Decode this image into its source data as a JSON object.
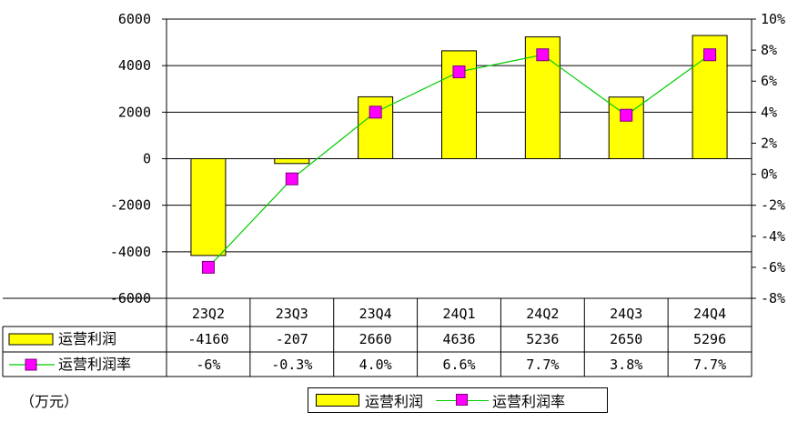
{
  "chart_data": {
    "type": "bar",
    "categories": [
      "23Q2",
      "23Q3",
      "23Q4",
      "24Q1",
      "24Q2",
      "24Q3",
      "24Q4"
    ],
    "series": [
      {
        "name": "运营利润",
        "type": "bar",
        "axis": "left",
        "color": "#ffff00",
        "values": [
          -4160,
          -207,
          2660,
          4636,
          5236,
          2650,
          5296
        ]
      },
      {
        "name": "运营利润率",
        "type": "line",
        "axis": "right",
        "color": "#00cc00",
        "marker_color": "#ff00ff",
        "values": [
          -6,
          -0.3,
          4.0,
          6.6,
          7.7,
          3.8,
          7.7
        ]
      }
    ],
    "y_left": {
      "min": -6000,
      "max": 6000,
      "step": 2000,
      "tick_labels": [
        "6000",
        "4000",
        "2000",
        "0",
        "-2000",
        "-4000",
        "-6000"
      ]
    },
    "y_right": {
      "min": -8,
      "max": 10,
      "step": 2,
      "tick_labels": [
        "10%",
        "8%",
        "6%",
        "4%",
        "2%",
        "0%",
        "-2%",
        "-4%",
        "-6%",
        "-8%"
      ]
    },
    "grid": true,
    "data_table": {
      "rows": [
        {
          "label": "运营利润",
          "values": [
            "-4160",
            "-207",
            "2660",
            "4636",
            "5236",
            "2650",
            "5296"
          ]
        },
        {
          "label": "运营利润率",
          "values": [
            "-6%",
            "-0.3%",
            "4.0%",
            "6.6%",
            "7.7%",
            "3.8%",
            "7.7%"
          ]
        }
      ]
    },
    "unit_label": "（万元）",
    "legend": {
      "position": "bottom",
      "items": [
        "运营利润",
        "运营利润率"
      ]
    }
  }
}
